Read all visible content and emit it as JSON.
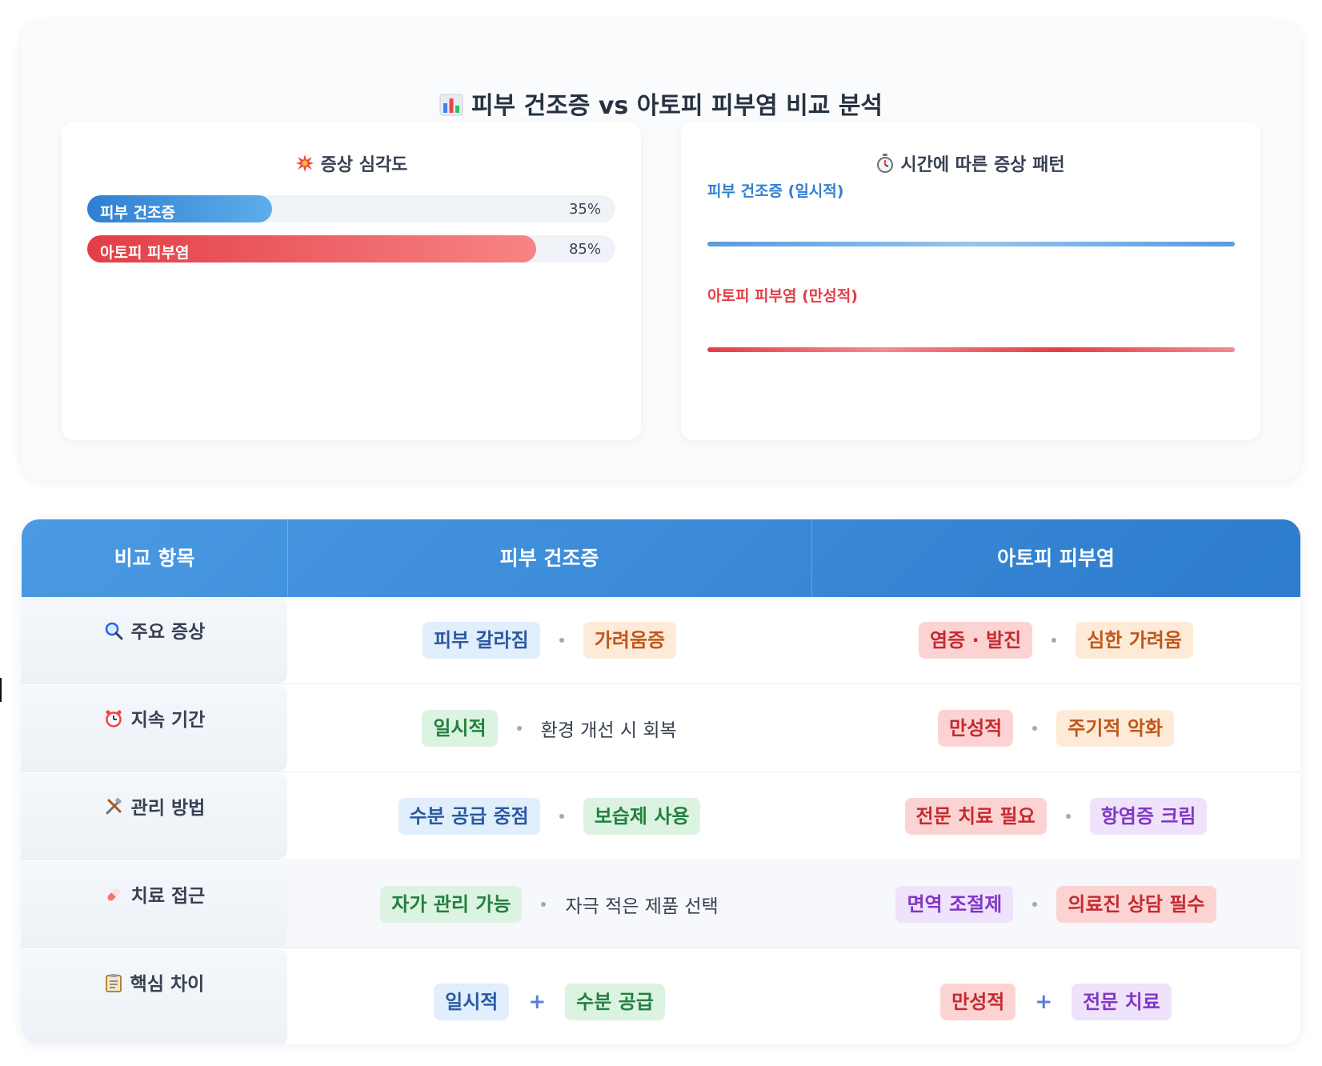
{
  "title": {
    "icon": "bar-chart-icon",
    "text": "피부 건조증 vs 아토피 피부염 비교 분석"
  },
  "severity": {
    "icon": "explosion-icon",
    "title": "증상 심각도",
    "bars": [
      {
        "label": "피부 건조증",
        "value_text": "35%",
        "value": 35,
        "color": "#2f7fd1"
      },
      {
        "label": "아토피 피부염",
        "value_text": "85%",
        "value": 85,
        "color": "#e23e46"
      }
    ]
  },
  "pattern": {
    "icon": "stopwatch-icon",
    "title": "시간에 따른 증상 패턴",
    "series": [
      {
        "label": "피부 건조증 (일시적)",
        "color": "#2f7fd1"
      },
      {
        "label": "아토피 피부염 (만성적)",
        "color": "#e23e46"
      }
    ]
  },
  "table": {
    "headers": [
      "비교 항목",
      "피부 건조증",
      "아토피 피부염"
    ],
    "rows": [
      {
        "icon": "magnifier-icon",
        "label": "주요 증상",
        "dry": [
          {
            "kind": "tag",
            "color": "blue",
            "text": "피부 갈라짐"
          },
          {
            "kind": "dot"
          },
          {
            "kind": "tag",
            "color": "orange",
            "text": "가려움증"
          }
        ],
        "atopic": [
          {
            "kind": "tag",
            "color": "red",
            "text": "염증 · 발진"
          },
          {
            "kind": "dot"
          },
          {
            "kind": "tag",
            "color": "orange",
            "text": "심한 가려움"
          }
        ]
      },
      {
        "icon": "alarm-clock-icon",
        "label": "지속 기간",
        "dry": [
          {
            "kind": "tag",
            "color": "green",
            "text": "일시적"
          },
          {
            "kind": "dot"
          },
          {
            "kind": "text",
            "text": "환경 개선 시 회복"
          }
        ],
        "atopic": [
          {
            "kind": "tag",
            "color": "red",
            "text": "만성적"
          },
          {
            "kind": "dot"
          },
          {
            "kind": "tag",
            "color": "orange",
            "text": "주기적 악화"
          }
        ]
      },
      {
        "icon": "tools-icon",
        "label": "관리 방법",
        "dry": [
          {
            "kind": "tag",
            "color": "blue",
            "text": "수분 공급 중점"
          },
          {
            "kind": "dot"
          },
          {
            "kind": "tag",
            "color": "green",
            "text": "보습제 사용"
          }
        ],
        "atopic": [
          {
            "kind": "tag",
            "color": "red",
            "text": "전문 치료 필요"
          },
          {
            "kind": "dot"
          },
          {
            "kind": "tag",
            "color": "purple",
            "text": "항염증 크림"
          }
        ]
      },
      {
        "icon": "pill-icon",
        "label": "치료 접근",
        "dry": [
          {
            "kind": "tag",
            "color": "green",
            "text": "자가 관리 가능"
          },
          {
            "kind": "dot"
          },
          {
            "kind": "text",
            "text": "자극 적은 제품 선택"
          }
        ],
        "atopic": [
          {
            "kind": "tag",
            "color": "purple",
            "text": "면역 조절제"
          },
          {
            "kind": "dot"
          },
          {
            "kind": "tag",
            "color": "red",
            "text": "의료진 상담 필수"
          }
        ]
      },
      {
        "icon": "clipboard-icon",
        "label": "핵심 차이",
        "dry": [
          {
            "kind": "tag",
            "color": "blue",
            "text": "일시적"
          },
          {
            "kind": "plus",
            "text": "+"
          },
          {
            "kind": "tag",
            "color": "green",
            "text": "수분 공급"
          }
        ],
        "atopic": [
          {
            "kind": "tag",
            "color": "red",
            "text": "만성적"
          },
          {
            "kind": "plus",
            "text": "+"
          },
          {
            "kind": "tag",
            "color": "purple",
            "text": "전문 치료"
          }
        ]
      }
    ]
  }
}
